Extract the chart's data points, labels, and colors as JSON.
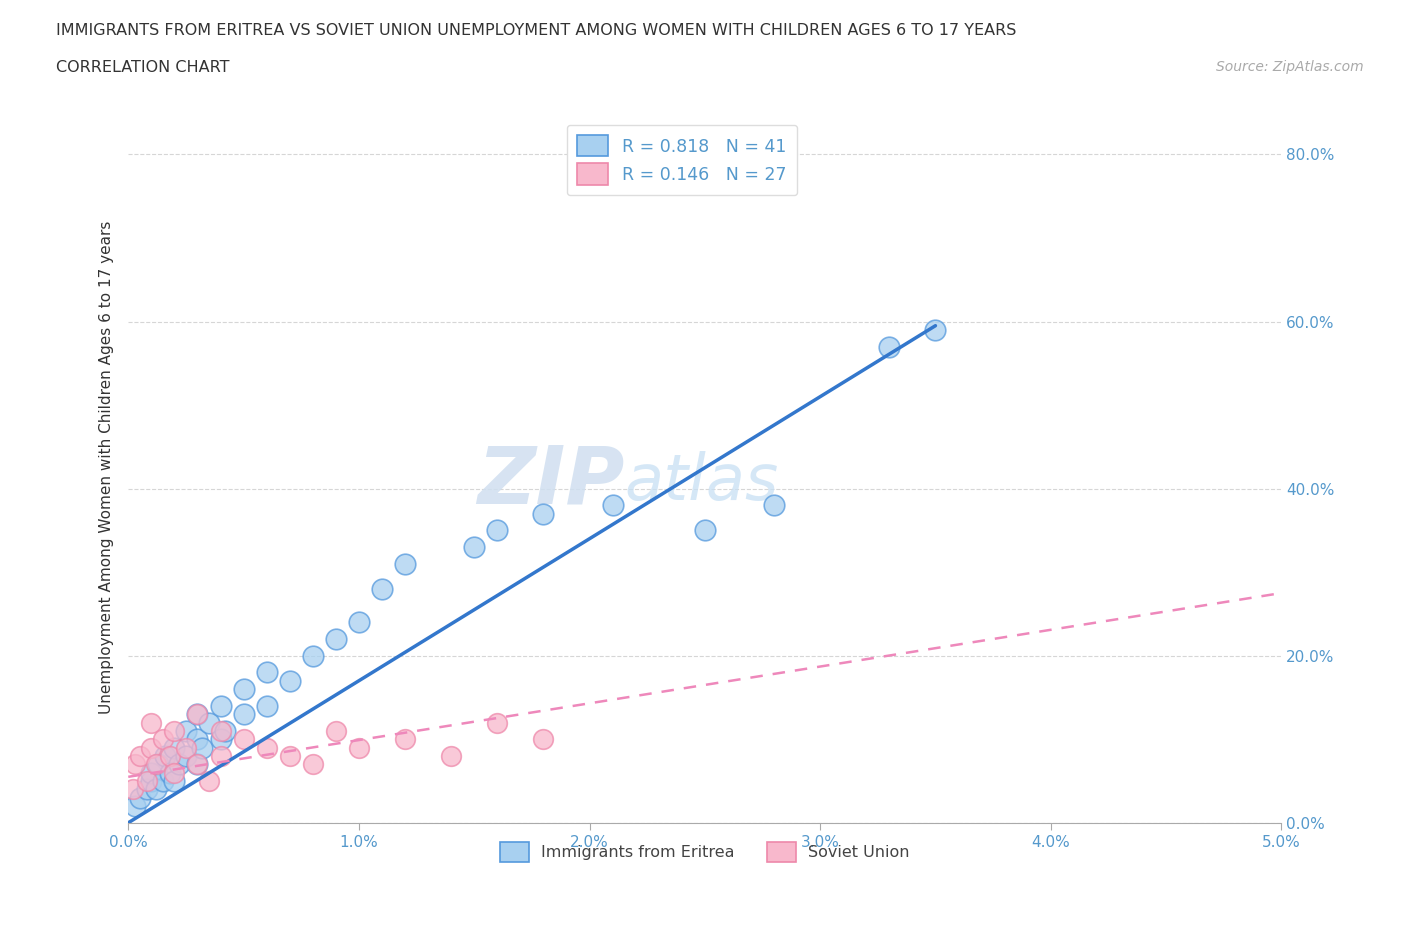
{
  "title_line1": "IMMIGRANTS FROM ERITREA VS SOVIET UNION UNEMPLOYMENT AMONG WOMEN WITH CHILDREN AGES 6 TO 17 YEARS",
  "title_line2": "CORRELATION CHART",
  "source_text": "Source: ZipAtlas.com",
  "ylabel": "Unemployment Among Women with Children Ages 6 to 17 years",
  "xlim": [
    0.0,
    0.05
  ],
  "ylim": [
    0.0,
    0.85
  ],
  "xtick_labels": [
    "0.0%",
    "1.0%",
    "2.0%",
    "3.0%",
    "4.0%",
    "5.0%"
  ],
  "xtick_values": [
    0.0,
    0.01,
    0.02,
    0.03,
    0.04,
    0.05
  ],
  "ytick_labels": [
    "0.0%",
    "20.0%",
    "40.0%",
    "60.0%",
    "80.0%"
  ],
  "ytick_values": [
    0.0,
    0.2,
    0.4,
    0.6,
    0.8
  ],
  "watermark_zip": "ZIP",
  "watermark_atlas": "atlas",
  "legend_r1": "R = 0.818",
  "legend_n1": "N = 41",
  "legend_r2": "R = 0.146",
  "legend_n2": "N = 27",
  "color_eritrea_fill": "#a8d0f0",
  "color_eritrea_edge": "#5599dd",
  "color_soviet_fill": "#f8b8cc",
  "color_soviet_edge": "#ee88aa",
  "color_eritrea_line": "#3377cc",
  "color_soviet_line": "#ee88bb",
  "scatter_eritrea_x": [
    0.0003,
    0.0005,
    0.0008,
    0.001,
    0.001,
    0.0012,
    0.0013,
    0.0015,
    0.0016,
    0.0018,
    0.002,
    0.002,
    0.0022,
    0.0025,
    0.0025,
    0.003,
    0.003,
    0.003,
    0.0032,
    0.0035,
    0.004,
    0.004,
    0.0042,
    0.005,
    0.005,
    0.006,
    0.006,
    0.007,
    0.008,
    0.009,
    0.01,
    0.011,
    0.012,
    0.015,
    0.016,
    0.018,
    0.021,
    0.025,
    0.028,
    0.033,
    0.035
  ],
  "scatter_eritrea_y": [
    0.02,
    0.03,
    0.04,
    0.05,
    0.06,
    0.04,
    0.07,
    0.05,
    0.08,
    0.06,
    0.05,
    0.09,
    0.07,
    0.08,
    0.11,
    0.07,
    0.1,
    0.13,
    0.09,
    0.12,
    0.1,
    0.14,
    0.11,
    0.13,
    0.16,
    0.14,
    0.18,
    0.17,
    0.2,
    0.22,
    0.24,
    0.28,
    0.31,
    0.33,
    0.35,
    0.37,
    0.38,
    0.35,
    0.38,
    0.57,
    0.59
  ],
  "scatter_soviet_x": [
    0.0002,
    0.0003,
    0.0005,
    0.0008,
    0.001,
    0.001,
    0.0012,
    0.0015,
    0.0018,
    0.002,
    0.002,
    0.0025,
    0.003,
    0.003,
    0.0035,
    0.004,
    0.004,
    0.005,
    0.006,
    0.007,
    0.008,
    0.009,
    0.01,
    0.012,
    0.014,
    0.016,
    0.018
  ],
  "scatter_soviet_y": [
    0.04,
    0.07,
    0.08,
    0.05,
    0.09,
    0.12,
    0.07,
    0.1,
    0.08,
    0.11,
    0.06,
    0.09,
    0.13,
    0.07,
    0.05,
    0.08,
    0.11,
    0.1,
    0.09,
    0.08,
    0.07,
    0.11,
    0.09,
    0.1,
    0.08,
    0.12,
    0.1
  ],
  "eritrea_line_x": [
    0.0,
    0.035
  ],
  "eritrea_line_y": [
    0.0,
    0.595
  ],
  "soviet_line_x": [
    0.0,
    0.05
  ],
  "soviet_line_y": [
    0.055,
    0.275
  ]
}
